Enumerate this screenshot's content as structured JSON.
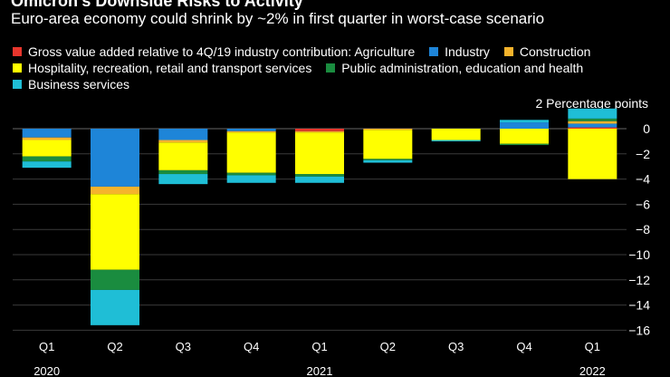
{
  "title": "Omicron’s Downside Risks to Activity",
  "subtitle": "Euro-area economy could shrink by ~2% in first quarter in worst-case scenario",
  "unit_label": "2 Percentage points",
  "legend": [
    {
      "label": "Gross value added relative to 4Q/19 industry contribution: Agriculture",
      "color": "#e8362d"
    },
    {
      "label": "Industry",
      "color": "#1e85d8"
    },
    {
      "label": "Construction",
      "color": "#f5b32c"
    },
    {
      "label": "Hospitality, recreation, retail and transport services",
      "color": "#ffff00"
    },
    {
      "label": "Public administration, education and health",
      "color": "#1a8c3f"
    },
    {
      "label": "Business services",
      "color": "#1fbed6"
    }
  ],
  "chart_data": {
    "type": "bar",
    "stacked": true,
    "title": "Omicron’s Downside Risks to Activity",
    "subtitle": "Euro-area economy could shrink by ~2% in first quarter in worst-case scenario",
    "ylabel": "2 Percentage points",
    "ylim": [
      -16.5,
      1.5
    ],
    "yticks": [
      0,
      -2,
      -4,
      -6,
      -8,
      -10,
      -12,
      -14,
      -16
    ],
    "categories": [
      "Q1",
      "Q2",
      "Q3",
      "Q4",
      "Q1",
      "Q2",
      "Q3",
      "Q4",
      "Q1"
    ],
    "year_labels": [
      {
        "category_index": 0,
        "label": "2020"
      },
      {
        "category_index": 4,
        "label": "2021"
      },
      {
        "category_index": 8,
        "label": "2022"
      }
    ],
    "series": [
      {
        "name": "Agriculture",
        "color": "#e8362d",
        "values": [
          0,
          0,
          0,
          0,
          -0.2,
          0,
          0,
          0,
          0.1
        ]
      },
      {
        "name": "Industry",
        "color": "#1e85d8",
        "values": [
          -0.7,
          -4.6,
          -0.9,
          -0.2,
          0,
          0,
          0,
          0.5,
          0.3
        ]
      },
      {
        "name": "Construction",
        "color": "#f5b32c",
        "values": [
          -0.2,
          -0.6,
          -0.2,
          -0.1,
          -0.1,
          -0.1,
          0,
          0,
          0.2
        ]
      },
      {
        "name": "Hospitality, recreation, retail and transport services",
        "color": "#ffff00",
        "values": [
          -1.3,
          -6.0,
          -2.2,
          -3.2,
          -3.3,
          -2.3,
          -0.9,
          -1.2,
          -4.0
        ]
      },
      {
        "name": "Public administration, education and health",
        "color": "#1a8c3f",
        "values": [
          -0.4,
          -1.6,
          -0.3,
          -0.2,
          -0.2,
          -0.1,
          0,
          -0.1,
          0.2
        ]
      },
      {
        "name": "Business services",
        "color": "#1fbed6",
        "values": [
          -0.5,
          -2.8,
          -0.8,
          -0.6,
          -0.5,
          -0.2,
          -0.1,
          0.2,
          0.8
        ]
      }
    ]
  }
}
